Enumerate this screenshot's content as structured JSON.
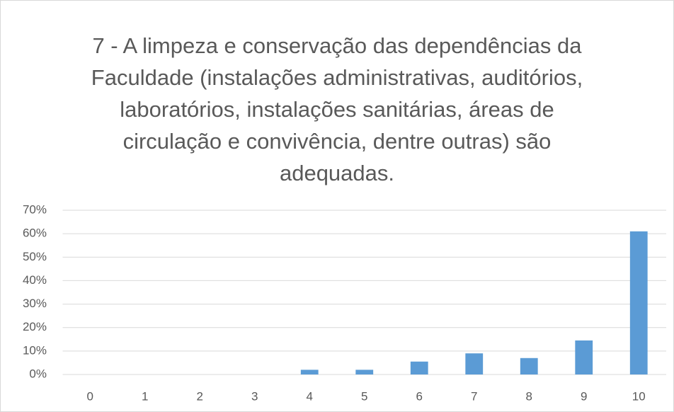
{
  "chart_data": {
    "type": "bar",
    "title": "7 - A limpeza e conservação das dependências da Faculdade (instalações administrativas, auditórios, laboratórios, instalações sanitárias, áreas de circulação e convivência, dentre outras) são adequadas.",
    "categories": [
      "0",
      "1",
      "2",
      "3",
      "4",
      "5",
      "6",
      "7",
      "8",
      "9",
      "10"
    ],
    "values": [
      0,
      0,
      0,
      0,
      2,
      2,
      5.5,
      9,
      7,
      14.5,
      61
    ],
    "color": "#5b9bd5",
    "ylim": [
      0,
      70
    ],
    "yticks": [
      {
        "value": 0,
        "label": "0%"
      },
      {
        "value": 10,
        "label": "10%"
      },
      {
        "value": 20,
        "label": "20%"
      },
      {
        "value": 30,
        "label": "30%"
      },
      {
        "value": 40,
        "label": "40%"
      },
      {
        "value": 50,
        "label": "50%"
      },
      {
        "value": 60,
        "label": "60%"
      },
      {
        "value": 70,
        "label": "70%"
      }
    ],
    "grid": true
  }
}
